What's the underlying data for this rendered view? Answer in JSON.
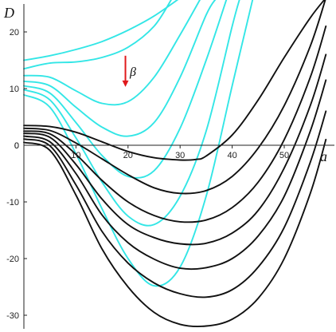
{
  "chart_data": {
    "type": "line",
    "title": "",
    "xlabel": "a",
    "ylabel": "D",
    "xlim": [
      0,
      60
    ],
    "ylim": [
      -32,
      25
    ],
    "x_ticks": [
      10,
      20,
      30,
      40,
      50
    ],
    "y_ticks": [
      -30,
      -20,
      -10,
      0,
      10,
      20
    ],
    "grid": false,
    "annotation": {
      "text": "β",
      "arrow_color": "#e0191c",
      "arrow_x": 19.5,
      "arrow_y_from": 15.8,
      "arrow_y_to": 10.3,
      "text_x": 20.5,
      "text_y": 12.8
    },
    "colors": {
      "cyan": "#33e6e6",
      "black": "#111111"
    },
    "series": [
      {
        "color": "cyan",
        "x": [
          0,
          5,
          10,
          15,
          20,
          25,
          30
        ],
        "y": [
          15,
          15.8,
          16.9,
          18.3,
          20.3,
          22.8,
          26
        ]
      },
      {
        "color": "cyan",
        "x": [
          0,
          5,
          10,
          15,
          20,
          25,
          28.5
        ],
        "y": [
          13.5,
          14.5,
          14.7,
          15.5,
          17.3,
          21,
          26
        ]
      },
      {
        "color": "cyan",
        "x": [
          0,
          5,
          10,
          15,
          20,
          25,
          30,
          34
        ],
        "y": [
          12.3,
          12,
          9.6,
          7.4,
          7.7,
          12,
          19.5,
          26
        ]
      },
      {
        "color": "cyan",
        "x": [
          0,
          5,
          10,
          15,
          20,
          25,
          30,
          35,
          37
        ],
        "y": [
          11.3,
          10.5,
          6.7,
          3.2,
          1.6,
          4,
          12,
          23,
          26
        ]
      },
      {
        "color": "cyan",
        "x": [
          0,
          5,
          10,
          15,
          20,
          25,
          30,
          35,
          39
        ],
        "y": [
          10.5,
          9.2,
          4,
          -1.8,
          -5.5,
          -4.5,
          3,
          15,
          26
        ]
      },
      {
        "color": "cyan",
        "x": [
          0,
          5,
          10,
          15,
          20,
          25,
          30,
          35,
          40,
          41.5
        ],
        "y": [
          9.8,
          8,
          1.3,
          -6.5,
          -12.5,
          -14,
          -9,
          2.5,
          21,
          26
        ]
      },
      {
        "color": "cyan",
        "x": [
          0,
          5,
          10,
          15,
          20,
          25,
          30,
          35,
          40,
          44
        ],
        "y": [
          8.9,
          6.7,
          -1.5,
          -11.2,
          -20,
          -24.8,
          -21.5,
          -9,
          10.5,
          26
        ]
      },
      {
        "color": "black",
        "x": [
          0,
          5,
          10,
          15,
          20,
          25,
          30,
          33,
          35,
          40,
          45,
          50,
          55,
          58
        ],
        "y": [
          3.5,
          3.3,
          2.3,
          0.6,
          -1.1,
          -2.2,
          -2.6,
          -2.5,
          -1.9,
          1.8,
          8,
          15.5,
          22.5,
          26
        ]
      },
      {
        "color": "black",
        "x": [
          0,
          5,
          10,
          15,
          20,
          25,
          30,
          35,
          40,
          45,
          50,
          55,
          58
        ],
        "y": [
          3,
          2.6,
          0.4,
          -2.4,
          -5.2,
          -7.5,
          -8.5,
          -8,
          -5.5,
          -0.5,
          7,
          17.5,
          26
        ]
      },
      {
        "color": "black",
        "x": [
          0,
          5,
          10,
          15,
          20,
          25,
          30,
          35,
          40,
          45,
          50,
          55,
          58
        ],
        "y": [
          2.5,
          2,
          -1.6,
          -6.2,
          -10,
          -12.4,
          -13.5,
          -13.2,
          -11,
          -6.5,
          1,
          12,
          21
        ]
      },
      {
        "color": "black",
        "x": [
          0,
          5,
          10,
          15,
          20,
          25,
          30,
          35,
          40,
          45,
          50,
          55,
          58
        ],
        "y": [
          2.1,
          1.4,
          -3.4,
          -9.5,
          -14,
          -16.3,
          -17.4,
          -17.3,
          -15.5,
          -11.5,
          -4,
          7,
          16
        ]
      },
      {
        "color": "black",
        "x": [
          0,
          5,
          10,
          15,
          20,
          25,
          30,
          35,
          40,
          45,
          50,
          55,
          58
        ],
        "y": [
          1.6,
          0.6,
          -5,
          -12.3,
          -17.2,
          -20.1,
          -21.7,
          -21.6,
          -20,
          -16,
          -9,
          2.5,
          11.5
        ]
      },
      {
        "color": "black",
        "x": [
          0,
          5,
          10,
          15,
          20,
          25,
          30,
          35,
          40,
          45,
          50,
          55,
          58
        ],
        "y": [
          1.1,
          -0.1,
          -7,
          -15.2,
          -20.8,
          -24.3,
          -26.2,
          -26.8,
          -25.5,
          -21.5,
          -14.5,
          -3,
          6
        ]
      },
      {
        "color": "black",
        "x": [
          0,
          5,
          10,
          15,
          20,
          25,
          30,
          35,
          40,
          45,
          50,
          55,
          58
        ],
        "y": [
          0.5,
          -0.9,
          -8.8,
          -18.3,
          -25,
          -29.5,
          -31.6,
          -31.9,
          -30.7,
          -27,
          -20,
          -8.5,
          1
        ]
      }
    ]
  }
}
